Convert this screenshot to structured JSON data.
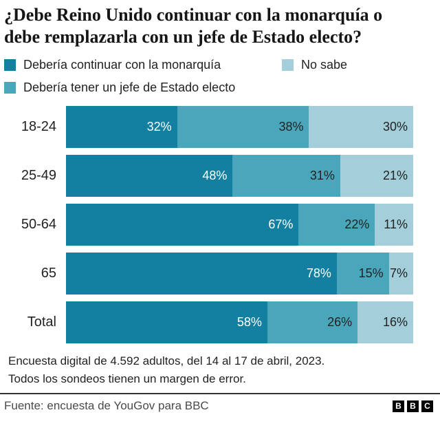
{
  "title": "¿Debe Reino Unido continuar con la monarquía o debe remplazarla con un jefe de Estado electo?",
  "legend": {
    "items": [
      {
        "label": "Debería continuar con la monarquía",
        "color": "#1380A1"
      },
      {
        "label": "No sabe",
        "color": "#A3CEDA"
      },
      {
        "label": "Debería tener un jefe de Estado electo",
        "color": "#4AA6BB"
      }
    ]
  },
  "chart_data": {
    "type": "bar",
    "orientation": "horizontal-stacked",
    "title": "¿Debe Reino Unido continuar con la monarquía o debe remplazarla con un jefe de Estado electo?",
    "categories": [
      "18-24",
      "25-49",
      "50-64",
      "65",
      "Total"
    ],
    "series": [
      {
        "name": "Debería continuar con la monarquía",
        "color": "#1380A1",
        "label_color": "#ffffff",
        "values": [
          32,
          48,
          67,
          78,
          58
        ]
      },
      {
        "name": "Debería tener un jefe de Estado electo",
        "color": "#4AA6BB",
        "label_color": "#222222",
        "values": [
          38,
          31,
          22,
          15,
          26
        ]
      },
      {
        "name": "No sabe",
        "color": "#A3CEDA",
        "label_color": "#222222",
        "values": [
          30,
          21,
          11,
          7,
          16
        ]
      }
    ],
    "value_suffix": "%",
    "xlim": [
      0,
      100
    ],
    "grid": false,
    "legend_position": "top"
  },
  "footnote": {
    "line1": "Encuesta digital de 4.592 adultos, del 14 al 17 de abril, 2023.",
    "line2": "Todos los sondeos tienen un margen de error."
  },
  "source": {
    "label": "Fuente: encuesta de YouGov para BBC"
  },
  "logo": {
    "letters": [
      "B",
      "B",
      "C"
    ]
  }
}
